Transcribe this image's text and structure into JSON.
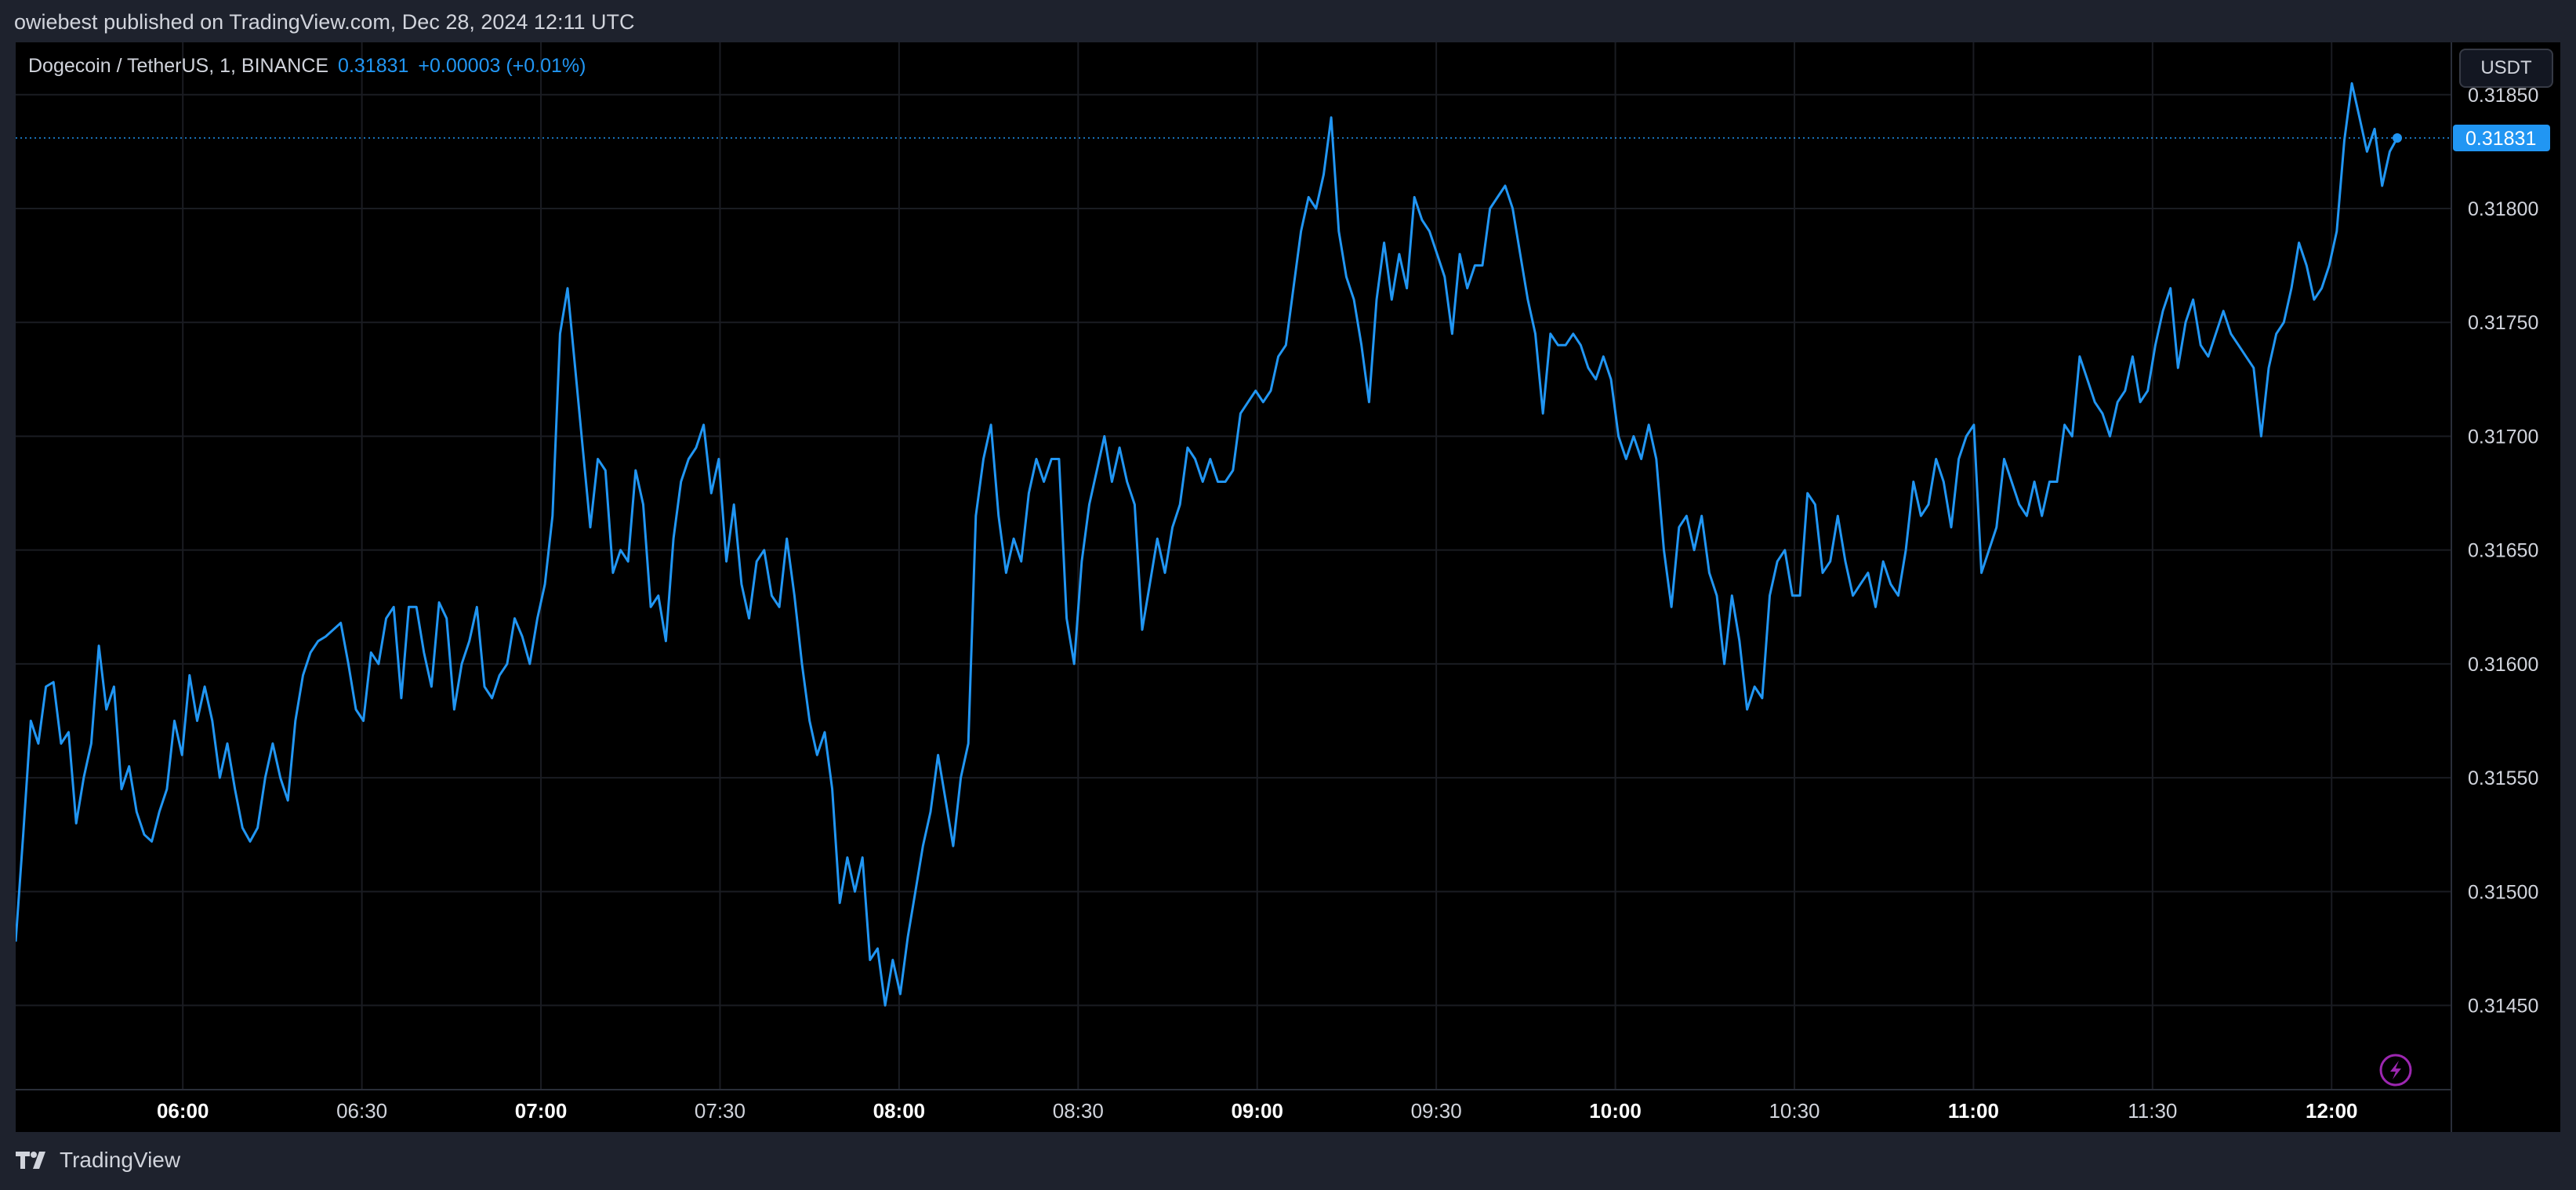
{
  "header": {
    "publisher_line": "owiebest published on TradingView.com, Dec 28, 2024 12:11 UTC"
  },
  "legend": {
    "symbol": "Dogecoin / TetherUS, 1, BINANCE",
    "last_value": "0.31831",
    "change": "+0.00003 (+0.01%)"
  },
  "unit_button": {
    "label": "USDT"
  },
  "footer": {
    "brand": "TradingView",
    "logo_icon": "tradingview-logo-icon"
  },
  "colors": {
    "line": "#2196f3",
    "background": "#000000",
    "frame": "#1e222d",
    "grid": "#1a1c22",
    "text": "#d1d4dc",
    "price_tag": "#2196f3",
    "bolt": "#9c27b0"
  },
  "chart_data": {
    "type": "line",
    "title": "Dogecoin / TetherUS, 1, BINANCE",
    "series": [
      {
        "name": "Dogecoin / TetherUS",
        "values": [
          0.31478,
          0.31525,
          0.31575,
          0.31565,
          0.3159,
          0.31592,
          0.31565,
          0.3157,
          0.3153,
          0.3155,
          0.31565,
          0.31608,
          0.3158,
          0.3159,
          0.31545,
          0.31555,
          0.31535,
          0.31525,
          0.31522,
          0.31535,
          0.31545,
          0.31575,
          0.3156,
          0.31595,
          0.31575,
          0.3159,
          0.31575,
          0.3155,
          0.31565,
          0.31545,
          0.31528,
          0.31522,
          0.31528,
          0.3155,
          0.31565,
          0.3155,
          0.3154,
          0.31575,
          0.31595,
          0.31605,
          0.3161,
          0.31612,
          0.31615,
          0.31618,
          0.316,
          0.3158,
          0.31575,
          0.31605,
          0.316,
          0.3162,
          0.31625,
          0.31585,
          0.31625,
          0.31625,
          0.31605,
          0.3159,
          0.31627,
          0.3162,
          0.3158,
          0.316,
          0.3161,
          0.31625,
          0.3159,
          0.31585,
          0.31595,
          0.316,
          0.3162,
          0.31612,
          0.316,
          0.3162,
          0.31635,
          0.31665,
          0.31745,
          0.31765,
          0.3173,
          0.31695,
          0.3166,
          0.3169,
          0.31685,
          0.3164,
          0.3165,
          0.31645,
          0.31685,
          0.3167,
          0.31625,
          0.3163,
          0.3161,
          0.31655,
          0.3168,
          0.3169,
          0.31695,
          0.31705,
          0.31675,
          0.3169,
          0.31645,
          0.3167,
          0.31635,
          0.3162,
          0.31645,
          0.3165,
          0.3163,
          0.31625,
          0.31655,
          0.3163,
          0.316,
          0.31575,
          0.3156,
          0.3157,
          0.31545,
          0.31495,
          0.31515,
          0.315,
          0.31515,
          0.3147,
          0.31475,
          0.3145,
          0.3147,
          0.31455,
          0.3148,
          0.315,
          0.3152,
          0.31535,
          0.3156,
          0.3154,
          0.3152,
          0.3155,
          0.31565,
          0.31665,
          0.3169,
          0.31705,
          0.31665,
          0.3164,
          0.31655,
          0.31645,
          0.31675,
          0.3169,
          0.3168,
          0.3169,
          0.3169,
          0.3162,
          0.316,
          0.31645,
          0.3167,
          0.31685,
          0.317,
          0.3168,
          0.31695,
          0.3168,
          0.3167,
          0.31615,
          0.31635,
          0.31655,
          0.3164,
          0.3166,
          0.3167,
          0.31695,
          0.3169,
          0.3168,
          0.3169,
          0.3168,
          0.3168,
          0.31685,
          0.3171,
          0.31715,
          0.3172,
          0.31715,
          0.3172,
          0.31735,
          0.3174,
          0.31765,
          0.3179,
          0.31805,
          0.318,
          0.31815,
          0.3184,
          0.3179,
          0.3177,
          0.3176,
          0.3174,
          0.31715,
          0.3176,
          0.31785,
          0.3176,
          0.3178,
          0.31765,
          0.31805,
          0.31795,
          0.3179,
          0.3178,
          0.3177,
          0.31745,
          0.3178,
          0.31765,
          0.31775,
          0.31775,
          0.318,
          0.31805,
          0.3181,
          0.318,
          0.3178,
          0.3176,
          0.31745,
          0.3171,
          0.31745,
          0.3174,
          0.3174,
          0.31745,
          0.3174,
          0.3173,
          0.31725,
          0.31735,
          0.31725,
          0.317,
          0.3169,
          0.317,
          0.3169,
          0.31705,
          0.3169,
          0.3165,
          0.31625,
          0.3166,
          0.31665,
          0.3165,
          0.31665,
          0.3164,
          0.3163,
          0.316,
          0.3163,
          0.3161,
          0.3158,
          0.3159,
          0.31585,
          0.3163,
          0.31645,
          0.3165,
          0.3163,
          0.3163,
          0.31675,
          0.3167,
          0.3164,
          0.31645,
          0.31665,
          0.31645,
          0.3163,
          0.31635,
          0.3164,
          0.31625,
          0.31645,
          0.31635,
          0.3163,
          0.3165,
          0.3168,
          0.31665,
          0.3167,
          0.3169,
          0.3168,
          0.3166,
          0.3169,
          0.317,
          0.31705,
          0.3164,
          0.3165,
          0.3166,
          0.3169,
          0.3168,
          0.3167,
          0.31665,
          0.3168,
          0.31665,
          0.3168,
          0.3168,
          0.31705,
          0.317,
          0.31735,
          0.31725,
          0.31715,
          0.3171,
          0.317,
          0.31715,
          0.3172,
          0.31735,
          0.31715,
          0.3172,
          0.3174,
          0.31755,
          0.31765,
          0.3173,
          0.3175,
          0.3176,
          0.3174,
          0.31735,
          0.31745,
          0.31755,
          0.31745,
          0.3174,
          0.31735,
          0.3173,
          0.317,
          0.3173,
          0.31745,
          0.3175,
          0.31765,
          0.31785,
          0.31775,
          0.3176,
          0.31765,
          0.31775,
          0.3179,
          0.3183,
          0.31855,
          0.3184,
          0.31825,
          0.31835,
          0.3181,
          0.31825,
          0.31831
        ]
      }
    ],
    "x_range": [
      "05:32",
      "12:11"
    ],
    "x_ticks": [
      {
        "label": "06:00",
        "bold": true
      },
      {
        "label": "06:30",
        "bold": false
      },
      {
        "label": "07:00",
        "bold": true
      },
      {
        "label": "07:30",
        "bold": false
      },
      {
        "label": "08:00",
        "bold": true
      },
      {
        "label": "08:30",
        "bold": false
      },
      {
        "label": "09:00",
        "bold": true
      },
      {
        "label": "09:30",
        "bold": false
      },
      {
        "label": "10:00",
        "bold": true
      },
      {
        "label": "10:30",
        "bold": false
      },
      {
        "label": "11:00",
        "bold": true
      },
      {
        "label": "11:30",
        "bold": false
      },
      {
        "label": "12:00",
        "bold": true
      }
    ],
    "y_ticks": [
      "0.31850",
      "0.31800",
      "0.31750",
      "0.31700",
      "0.31650",
      "0.31600",
      "0.31550",
      "0.31500",
      "0.31450"
    ],
    "ylim": [
      0.31413,
      0.31873
    ],
    "last_price": 0.31831,
    "last_price_label": "0.31831",
    "xlabel": "",
    "ylabel": "",
    "grid": true,
    "legend_position": "top-left"
  }
}
